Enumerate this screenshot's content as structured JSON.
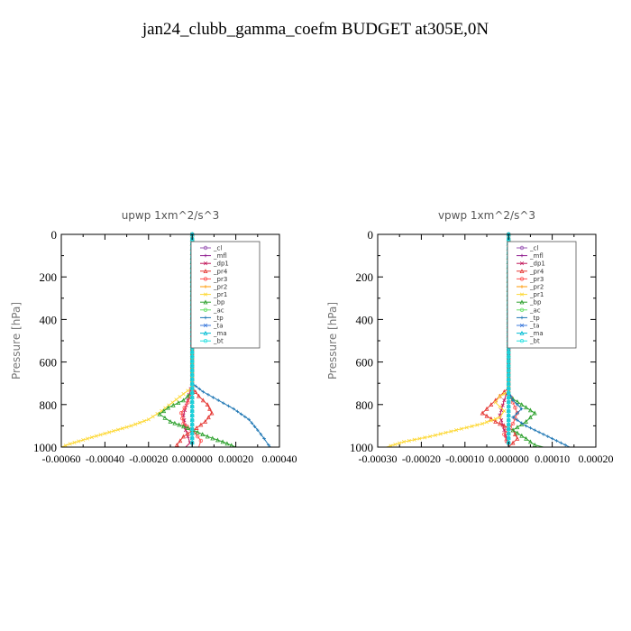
{
  "page": {
    "title": "jan24_clubb_gamma_coefm  BUDGET at305E,0N"
  },
  "chart_data": [
    {
      "type": "line",
      "title": "upwp   1xm^2/s^3",
      "ylabel": "Pressure [hPa]",
      "xlim": [
        -0.0006,
        0.0004
      ],
      "ylim": [
        1000,
        0
      ],
      "y_ticks": [
        0,
        200,
        400,
        600,
        800,
        1000
      ],
      "x_tick_labels": [
        "-0.00060",
        "-0.00040",
        "-0.00020",
        "0.000000",
        "0.00020",
        "0.00040"
      ],
      "x_tick_values": [
        -0.0006,
        -0.0004,
        -0.0002,
        0.0,
        0.0002,
        0.0004
      ],
      "legend_position": "top-right",
      "series": [
        {
          "name": "_cl",
          "color": "#9b59b6",
          "points": [
            [
              0,
              0
            ],
            [
              0,
              1000
            ]
          ]
        },
        {
          "name": "_mfl",
          "color": "#8e1b8e",
          "points": [
            [
              0,
              0
            ],
            [
              0,
              1000
            ]
          ]
        },
        {
          "name": "_dp1",
          "color": "#c2185b",
          "points": [
            [
              0,
              0
            ],
            [
              0,
              700
            ],
            [
              -2e-05,
              780
            ],
            [
              -4e-05,
              850
            ],
            [
              -3e-05,
              920
            ],
            [
              -1e-05,
              980
            ],
            [
              -3e-05,
              1000
            ]
          ]
        },
        {
          "name": "_pr4",
          "color": "#e53935",
          "points": [
            [
              0,
              0
            ],
            [
              0,
              720
            ],
            [
              3e-05,
              760
            ],
            [
              7e-05,
              800
            ],
            [
              9e-05,
              840
            ],
            [
              6e-05,
              880
            ],
            [
              2e-05,
              910
            ],
            [
              -4e-05,
              950
            ],
            [
              -7e-05,
              990
            ],
            [
              -6e-05,
              1000
            ]
          ]
        },
        {
          "name": "_pr3",
          "color": "#ff5252",
          "points": [
            [
              0,
              0
            ],
            [
              0,
              740
            ],
            [
              -2e-05,
              790
            ],
            [
              -5e-05,
              840
            ],
            [
              -4e-05,
              890
            ],
            [
              1e-05,
              930
            ],
            [
              4e-05,
              970
            ],
            [
              3e-05,
              1000
            ]
          ]
        },
        {
          "name": "_pr2",
          "color": "#ff9800",
          "points": [
            [
              0,
              0
            ],
            [
              0,
              1000
            ]
          ]
        },
        {
          "name": "_pr1",
          "color": "#fdd835",
          "points": [
            [
              0,
              0
            ],
            [
              0,
              720
            ],
            [
              -4e-05,
              750
            ],
            [
              -9e-05,
              790
            ],
            [
              -0.00014,
              830
            ],
            [
              -0.0002,
              870
            ],
            [
              -0.00028,
              900
            ],
            [
              -0.00038,
              930
            ],
            [
              -0.00048,
              960
            ],
            [
              -0.00056,
              985
            ],
            [
              -0.0006,
              1000
            ]
          ]
        },
        {
          "name": "_bp",
          "color": "#2ca02c",
          "points": [
            [
              0,
              0
            ],
            [
              0,
              740
            ],
            [
              -4e-05,
              780
            ],
            [
              -0.00011,
              815
            ],
            [
              -0.00015,
              845
            ],
            [
              -0.0001,
              880
            ],
            [
              -2e-05,
              910
            ],
            [
              7e-05,
              950
            ],
            [
              0.00014,
              975
            ],
            [
              0.0002,
              1000
            ]
          ]
        },
        {
          "name": "_ac",
          "color": "#66e066",
          "points": [
            [
              0,
              0
            ],
            [
              0,
              1000
            ]
          ]
        },
        {
          "name": "_tp",
          "color": "#1f77b4",
          "points": [
            [
              0,
              0
            ],
            [
              0,
              700
            ],
            [
              5e-05,
              740
            ],
            [
              0.00012,
              780
            ],
            [
              0.00019,
              820
            ],
            [
              0.00026,
              870
            ],
            [
              0.0003,
              920
            ],
            [
              0.00033,
              960
            ],
            [
              0.00035,
              990
            ],
            [
              0.00036,
              1000
            ]
          ]
        },
        {
          "name": "_ta",
          "color": "#3e7bdc",
          "points": [
            [
              0,
              0
            ],
            [
              0,
              1000
            ]
          ]
        },
        {
          "name": "_ma",
          "color": "#00bcd4",
          "points": [
            [
              0,
              0
            ],
            [
              0,
              1000
            ]
          ]
        },
        {
          "name": "_bt",
          "color": "#26e0e0",
          "points": [
            [
              0,
              0
            ],
            [
              0,
              1000
            ]
          ]
        }
      ]
    },
    {
      "type": "line",
      "title": "vpwp   1xm^2/s^3",
      "ylabel": "Pressure [hPa]",
      "xlim": [
        -0.0003,
        0.0002
      ],
      "ylim": [
        1000,
        0
      ],
      "y_ticks": [
        0,
        200,
        400,
        600,
        800,
        1000
      ],
      "x_tick_labels": [
        "-0.00030",
        "-0.00020",
        "-0.00010",
        "0.000000",
        "0.00010",
        "0.00020"
      ],
      "x_tick_values": [
        -0.0003,
        -0.0002,
        -0.0001,
        0.0,
        0.0001,
        0.0002
      ],
      "legend_position": "top-right",
      "series": [
        {
          "name": "_cl",
          "color": "#9b59b6",
          "points": [
            [
              0,
              0
            ],
            [
              0,
              1000
            ]
          ]
        },
        {
          "name": "_mfl",
          "color": "#8e1b8e",
          "points": [
            [
              0,
              0
            ],
            [
              0,
              1000
            ]
          ]
        },
        {
          "name": "_dp1",
          "color": "#c2185b",
          "points": [
            [
              0,
              0
            ],
            [
              0,
              720
            ],
            [
              -1e-05,
              780
            ],
            [
              -2e-05,
              850
            ],
            [
              -1e-05,
              920
            ],
            [
              0,
              1000
            ]
          ]
        },
        {
          "name": "_pr4",
          "color": "#e53935",
          "points": [
            [
              0,
              0
            ],
            [
              0,
              720
            ],
            [
              -2e-05,
              760
            ],
            [
              -4e-05,
              800
            ],
            [
              -6e-05,
              840
            ],
            [
              -3e-05,
              880
            ],
            [
              1e-05,
              920
            ],
            [
              2e-05,
              960
            ],
            [
              0,
              1000
            ]
          ]
        },
        {
          "name": "_pr3",
          "color": "#ff5252",
          "points": [
            [
              0,
              0
            ],
            [
              0,
              740
            ],
            [
              1e-05,
              790
            ],
            [
              2e-05,
              840
            ],
            [
              1e-05,
              890
            ],
            [
              -1e-05,
              940
            ],
            [
              0,
              1000
            ]
          ]
        },
        {
          "name": "_pr2",
          "color": "#ff9800",
          "points": [
            [
              0,
              0
            ],
            [
              0,
              1000
            ]
          ]
        },
        {
          "name": "_pr1",
          "color": "#fdd835",
          "points": [
            [
              0,
              0
            ],
            [
              0,
              740
            ],
            [
              -2e-05,
              760
            ],
            [
              -3e-05,
              790
            ],
            [
              -1e-05,
              830
            ],
            [
              -2e-05,
              860
            ],
            [
              -6e-05,
              890
            ],
            [
              -0.00012,
              920
            ],
            [
              -0.00018,
              950
            ],
            [
              -0.00024,
              975
            ],
            [
              -0.00028,
              1000
            ]
          ]
        },
        {
          "name": "_bp",
          "color": "#2ca02c",
          "points": [
            [
              0,
              0
            ],
            [
              0,
              760
            ],
            [
              3e-05,
              800
            ],
            [
              6e-05,
              840
            ],
            [
              4e-05,
              880
            ],
            [
              1e-05,
              920
            ],
            [
              4e-05,
              960
            ],
            [
              6e-05,
              990
            ],
            [
              8e-05,
              1000
            ]
          ]
        },
        {
          "name": "_ac",
          "color": "#66e066",
          "points": [
            [
              0,
              0
            ],
            [
              0,
              1000
            ]
          ]
        },
        {
          "name": "_tp",
          "color": "#1f77b4",
          "points": [
            [
              0,
              0
            ],
            [
              0,
              740
            ],
            [
              1e-05,
              780
            ],
            [
              3e-05,
              820
            ],
            [
              1e-05,
              860
            ],
            [
              4e-05,
              900
            ],
            [
              8e-05,
              940
            ],
            [
              0.00011,
              970
            ],
            [
              0.00013,
              990
            ],
            [
              0.00014,
              1000
            ]
          ]
        },
        {
          "name": "_ta",
          "color": "#3e7bdc",
          "points": [
            [
              0,
              0
            ],
            [
              0,
              1000
            ]
          ]
        },
        {
          "name": "_ma",
          "color": "#00bcd4",
          "points": [
            [
              0,
              0
            ],
            [
              0,
              1000
            ]
          ]
        },
        {
          "name": "_bt",
          "color": "#26e0e0",
          "points": [
            [
              0,
              0
            ],
            [
              0,
              1000
            ]
          ]
        }
      ]
    }
  ]
}
